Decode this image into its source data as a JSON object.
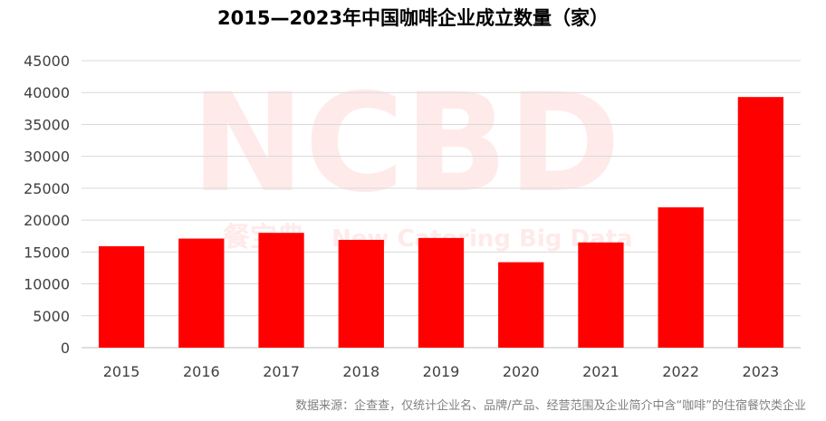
{
  "chart_data": {
    "type": "bar",
    "title": "2015—2023年中国咖啡企业成立数量（家）",
    "categories": [
      "2015",
      "2016",
      "2017",
      "2018",
      "2019",
      "2020",
      "2021",
      "2022",
      "2023"
    ],
    "values": [
      15900,
      17100,
      18000,
      16900,
      17200,
      13400,
      16500,
      22000,
      39300
    ],
    "ylim": [
      0,
      45000
    ],
    "yticks": [
      0,
      5000,
      10000,
      15000,
      20000,
      25000,
      30000,
      35000,
      40000,
      45000
    ],
    "grid": true,
    "bar_color": "#FF0000",
    "xlabel": "",
    "ylabel": ""
  },
  "watermark": {
    "logo_text": "NCBD",
    "subtitle_cn": "餐宝典",
    "subtitle_en": "New Catering Big Data",
    "color": "#FFD9D9"
  },
  "footer": {
    "source_note": "数据来源：企查查，仅统计企业名、品牌/产品、经营范围及企业简介中含“咖啡”的住宿餐饮类企业"
  }
}
